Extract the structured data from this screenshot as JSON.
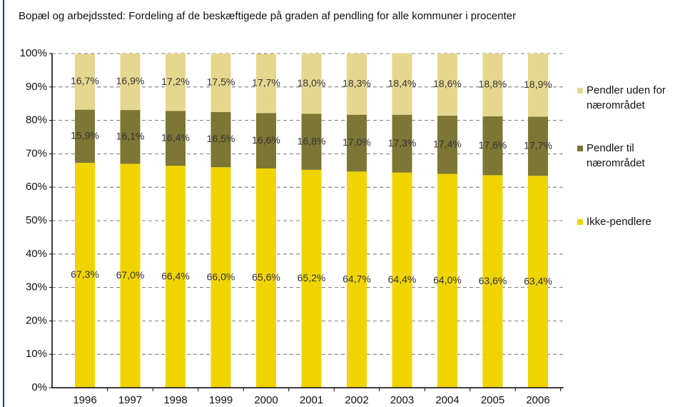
{
  "chart_data": {
    "type": "stacked_bar",
    "title": "Bopæl og arbejdssted: Fordeling af de beskæftigede på graden af pendling for alle kommuner i procenter",
    "categories": [
      "1996",
      "1997",
      "1998",
      "1999",
      "2000",
      "2001",
      "2002",
      "2003",
      "2004",
      "2005",
      "2006"
    ],
    "series": [
      {
        "name": "Ikke-pendlere",
        "color": "#f0d400",
        "values": [
          67.3,
          67.0,
          66.4,
          66.0,
          65.6,
          65.2,
          64.7,
          64.4,
          64.0,
          63.6,
          63.4
        ],
        "value_labels": [
          "67,3%",
          "67,0%",
          "66,4%",
          "66,0%",
          "65,6%",
          "65,2%",
          "64,7%",
          "64,4%",
          "64,0%",
          "63,6%",
          "63,4%"
        ]
      },
      {
        "name": "Pendler til nærområdet",
        "color": "#7d7634",
        "values": [
          15.9,
          16.1,
          16.4,
          16.5,
          16.6,
          16.8,
          17.0,
          17.3,
          17.4,
          17.6,
          17.7
        ],
        "value_labels": [
          "15,9%",
          "16,1%",
          "16,4%",
          "16,5%",
          "16,6%",
          "16,8%",
          "17,0%",
          "17,3%",
          "17,4%",
          "17,6%",
          "17,7%"
        ]
      },
      {
        "name": "Pendler uden for nærområdet",
        "color": "#e5d78e",
        "values": [
          16.7,
          16.9,
          17.2,
          17.5,
          17.7,
          18.0,
          18.3,
          18.4,
          18.6,
          18.8,
          18.9
        ],
        "value_labels": [
          "16,7%",
          "16,9%",
          "17,2%",
          "17,5%",
          "17,7%",
          "18,0%",
          "18,3%",
          "18,4%",
          "18,6%",
          "18,8%",
          "18,9%"
        ]
      }
    ],
    "ylim": [
      0,
      100
    ],
    "yticks": [
      {
        "value": 0,
        "label": "0%"
      },
      {
        "value": 10,
        "label": "10%"
      },
      {
        "value": 20,
        "label": "20%"
      },
      {
        "value": 30,
        "label": "30%"
      },
      {
        "value": 40,
        "label": "40%"
      },
      {
        "value": 50,
        "label": "50%"
      },
      {
        "value": 60,
        "label": "60%"
      },
      {
        "value": 70,
        "label": "70%"
      },
      {
        "value": 80,
        "label": "80%"
      },
      {
        "value": 90,
        "label": "90%"
      },
      {
        "value": 100,
        "label": "100%"
      }
    ],
    "grid": true,
    "legend": "right"
  }
}
